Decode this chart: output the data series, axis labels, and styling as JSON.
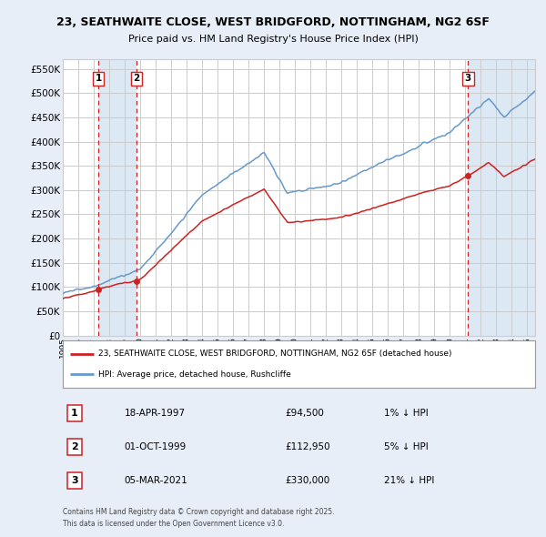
{
  "title1": "23, SEATHWAITE CLOSE, WEST BRIDGFORD, NOTTINGHAM, NG2 6SF",
  "title2": "Price paid vs. HM Land Registry's House Price Index (HPI)",
  "legend_label_red": "23, SEATHWAITE CLOSE, WEST BRIDGFORD, NOTTINGHAM, NG2 6SF (detached house)",
  "legend_label_blue": "HPI: Average price, detached house, Rushcliffe",
  "transactions": [
    {
      "num": 1,
      "date": "18-APR-1997",
      "price": 94500,
      "price_str": "£94,500",
      "pct": "1%",
      "dir": "↓",
      "year": 1997.29
    },
    {
      "num": 2,
      "date": "01-OCT-1999",
      "price": 112950,
      "price_str": "£112,950",
      "pct": "5%",
      "dir": "↓",
      "year": 1999.75
    },
    {
      "num": 3,
      "date": "05-MAR-2021",
      "price": 330000,
      "price_str": "£330,000",
      "pct": "21%",
      "dir": "↓",
      "year": 2021.17
    }
  ],
  "footnote1": "Contains HM Land Registry data © Crown copyright and database right 2025.",
  "footnote2": "This data is licensed under the Open Government Licence v3.0.",
  "bg_color": "#e8eef8",
  "plot_bg_color": "#ffffff",
  "shade_color": "#dde8f5",
  "red_color": "#cc2222",
  "blue_color": "#6699cc",
  "vline_color": "#cc2222",
  "grid_color": "#cccccc",
  "yticks": [
    0,
    50000,
    100000,
    150000,
    200000,
    250000,
    300000,
    350000,
    400000,
    450000,
    500000,
    550000
  ],
  "ylim_max": 570000,
  "year_start": 1995,
  "year_end": 2025
}
